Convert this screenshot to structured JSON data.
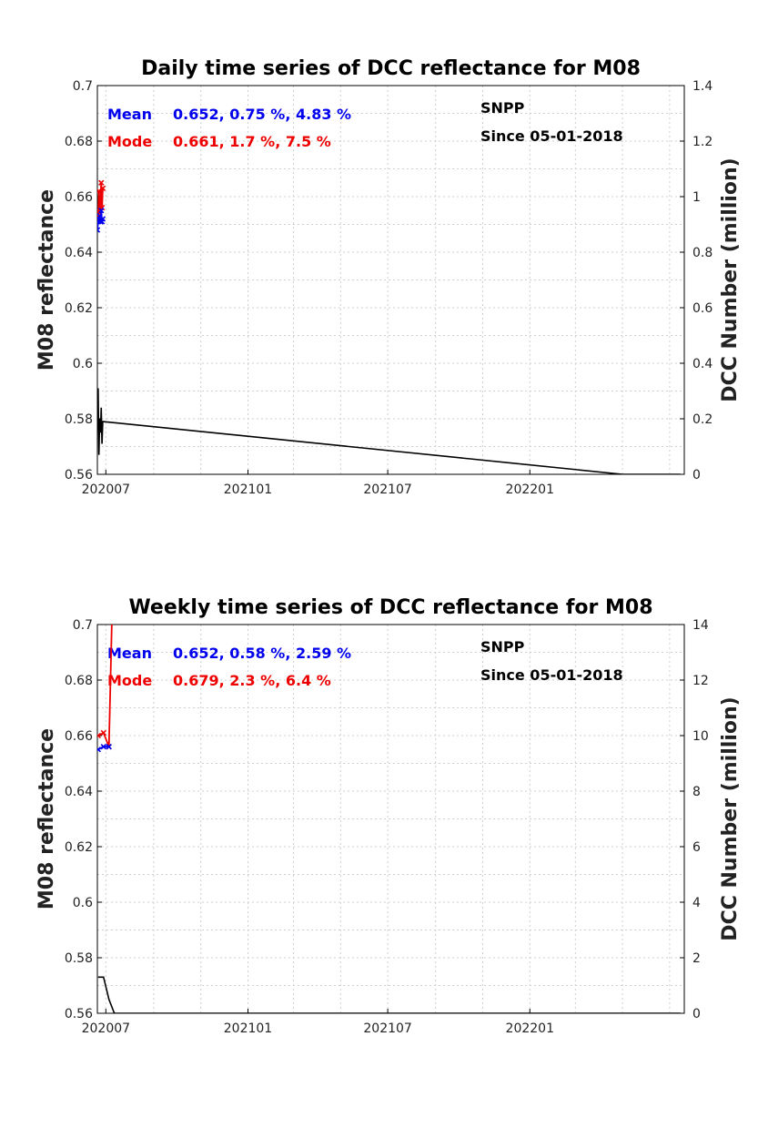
{
  "chart_data": [
    {
      "type": "line",
      "title": "Daily time series of DCC reflectance for M08",
      "ylabel": "M08 reflectance",
      "y2label": "DCC Number (million)",
      "ylim": [
        0.56,
        0.7
      ],
      "yticks": [
        "0.56",
        "0.58",
        "0.6",
        "0.62",
        "0.64",
        "0.66",
        "0.68",
        "0.7"
      ],
      "y2lim": [
        0,
        1.4
      ],
      "y2ticks": [
        "0",
        "0.2",
        "0.4",
        "0.6",
        "0.8",
        "1",
        "1.2",
        "1.4"
      ],
      "xlim": [
        "2020-06-20",
        "2022-07-20"
      ],
      "xticks": [
        {
          "date": "2020-07-01",
          "label": "202007"
        },
        {
          "date": "2021-01-01",
          "label": "202101"
        },
        {
          "date": "2021-07-01",
          "label": "202107"
        },
        {
          "date": "2022-01-01",
          "label": "202201"
        }
      ],
      "grid": true,
      "annotations": {
        "mean_label": "Mean",
        "mean_stats": "0.652, 0.75 %, 4.83 %",
        "mode_label": "Mode",
        "mode_stats": "0.661, 1.7 %, 7.5 %",
        "satellite": "SNPP",
        "since": "Since 05-01-2018"
      },
      "colors": {
        "mean": "#0000ee",
        "mode": "#ee0000",
        "count": "#000000"
      },
      "series": [
        {
          "role": "mode",
          "axis": "left",
          "marker": "x",
          "x": [
            "2020-06-20",
            "2020-06-21",
            "2020-06-22",
            "2020-06-23",
            "2020-06-24",
            "2020-06-25",
            "2020-06-26",
            "2020-06-27"
          ],
          "values": [
            0.655,
            0.652,
            0.662,
            0.654,
            0.658,
            0.665,
            0.656,
            0.663
          ]
        },
        {
          "role": "mean",
          "axis": "left",
          "marker": "x",
          "x": [
            "2020-06-20",
            "2020-06-21",
            "2020-06-22",
            "2020-06-23",
            "2020-06-24",
            "2020-06-25",
            "2020-06-26",
            "2020-06-27"
          ],
          "values": [
            0.648,
            0.651,
            0.652,
            0.653,
            0.651,
            0.655,
            0.651,
            0.652
          ]
        },
        {
          "role": "count",
          "axis": "right",
          "x": [
            "2020-06-20",
            "2020-06-21",
            "2020-06-22",
            "2020-06-23",
            "2020-06-24",
            "2020-06-25",
            "2020-06-26",
            "2020-06-27",
            "2022-05-01",
            "2022-07-15"
          ],
          "values": [
            0.16,
            0.31,
            0.07,
            0.2,
            0.15,
            0.24,
            0.11,
            0.19,
            0.0,
            0.0
          ]
        }
      ]
    },
    {
      "type": "line",
      "title": "Weekly time series of DCC reflectance for M08",
      "ylabel": "M08 reflectance",
      "y2label": "DCC Number (million)",
      "ylim": [
        0.56,
        0.7
      ],
      "yticks": [
        "0.56",
        "0.58",
        "0.6",
        "0.62",
        "0.64",
        "0.66",
        "0.68",
        "0.7"
      ],
      "y2lim": [
        0,
        14
      ],
      "y2ticks": [
        "0",
        "2",
        "4",
        "6",
        "8",
        "10",
        "12",
        "14"
      ],
      "xlim": [
        "2020-06-20",
        "2022-07-20"
      ],
      "xticks": [
        {
          "date": "2020-07-01",
          "label": "202007"
        },
        {
          "date": "2021-01-01",
          "label": "202101"
        },
        {
          "date": "2021-07-01",
          "label": "202107"
        },
        {
          "date": "2022-01-01",
          "label": "202201"
        }
      ],
      "grid": true,
      "annotations": {
        "mean_label": "Mean",
        "mean_stats": "0.652, 0.58 %, 2.59 %",
        "mode_label": "Mode",
        "mode_stats": "0.679, 2.3 %, 6.4 %",
        "satellite": "SNPP",
        "since": "Since 05-01-2018"
      },
      "colors": {
        "mean": "#0000ee",
        "mode": "#ee0000",
        "count": "#000000"
      },
      "series": [
        {
          "role": "mode",
          "axis": "left",
          "marker": "x",
          "x": [
            "2020-06-21",
            "2020-06-28",
            "2020-07-05",
            "2020-07-12"
          ],
          "values": [
            0.66,
            0.661,
            0.656,
            0.74
          ]
        },
        {
          "role": "mean",
          "axis": "left",
          "marker": "x",
          "x": [
            "2020-06-21",
            "2020-06-28",
            "2020-07-05"
          ],
          "values": [
            0.655,
            0.656,
            0.656
          ]
        },
        {
          "role": "count",
          "axis": "right",
          "x": [
            "2020-06-21",
            "2020-06-28",
            "2020-07-05",
            "2020-07-12",
            "2022-07-15"
          ],
          "values": [
            1.3,
            1.3,
            0.5,
            0.0,
            0.0
          ]
        }
      ]
    }
  ]
}
